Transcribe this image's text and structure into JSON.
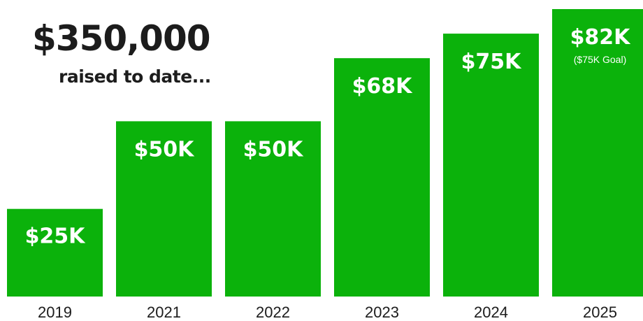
{
  "headline": {
    "total": "$350,000",
    "subtitle": "raised to date..."
  },
  "colors": {
    "bar": "#0bb20b",
    "bar_label": "#ffffff",
    "tick_label": "#1c1c1c",
    "heading": "#1c1c1c"
  },
  "chart_data": {
    "type": "bar",
    "title": "",
    "xlabel": "",
    "ylabel": "",
    "categories": [
      "2019",
      "2021",
      "2022",
      "2023",
      "2024",
      "2025"
    ],
    "values": [
      25,
      50,
      50,
      68,
      75,
      82
    ],
    "value_unit": "thousand USD",
    "data_labels": [
      "$25K",
      "$50K",
      "$50K",
      "$68K",
      "$75K",
      "$82K"
    ],
    "annotations": [
      {
        "category": "2025",
        "text": "($75K Goal)"
      }
    ],
    "ylim": [
      0,
      82
    ],
    "grid": false,
    "legend": "none"
  }
}
